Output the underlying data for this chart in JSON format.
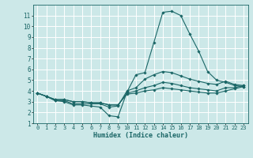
{
  "xlabel": "Humidex (Indice chaleur)",
  "ylabel": "",
  "xlim": [
    -0.5,
    23.5
  ],
  "ylim": [
    1,
    12
  ],
  "xticks": [
    0,
    1,
    2,
    3,
    4,
    5,
    6,
    7,
    8,
    9,
    10,
    11,
    12,
    13,
    14,
    15,
    16,
    17,
    18,
    19,
    20,
    21,
    22,
    23
  ],
  "yticks": [
    1,
    2,
    3,
    4,
    5,
    6,
    7,
    8,
    9,
    10,
    11
  ],
  "background_color": "#cce8e8",
  "grid_color": "#ffffff",
  "line_color": "#1a6666",
  "lines": [
    [
      3.8,
      3.5,
      3.1,
      3.0,
      2.7,
      2.7,
      2.6,
      2.5,
      1.7,
      1.6,
      3.9,
      5.5,
      5.7,
      8.5,
      11.3,
      11.4,
      11.0,
      9.3,
      7.7,
      5.8,
      5.0,
      4.8,
      4.5,
      4.4
    ],
    [
      3.8,
      3.5,
      3.1,
      3.1,
      2.8,
      2.8,
      2.8,
      2.8,
      2.5,
      2.6,
      4.0,
      4.3,
      5.1,
      5.5,
      5.8,
      5.7,
      5.4,
      5.1,
      4.9,
      4.7,
      4.6,
      4.9,
      4.6,
      4.5
    ],
    [
      3.8,
      3.5,
      3.2,
      3.2,
      3.0,
      3.0,
      2.9,
      2.9,
      2.7,
      2.7,
      3.8,
      4.0,
      4.3,
      4.5,
      4.8,
      4.7,
      4.5,
      4.3,
      4.2,
      4.1,
      4.0,
      4.3,
      4.3,
      4.5
    ],
    [
      3.8,
      3.5,
      3.2,
      3.2,
      3.0,
      3.0,
      2.9,
      2.9,
      2.7,
      2.7,
      3.7,
      3.8,
      4.0,
      4.1,
      4.3,
      4.2,
      4.1,
      4.0,
      3.9,
      3.8,
      3.8,
      4.0,
      4.2,
      4.4
    ]
  ],
  "xlabel_fontsize": 6.0,
  "tick_fontsize_x": 5.0,
  "tick_fontsize_y": 5.5
}
